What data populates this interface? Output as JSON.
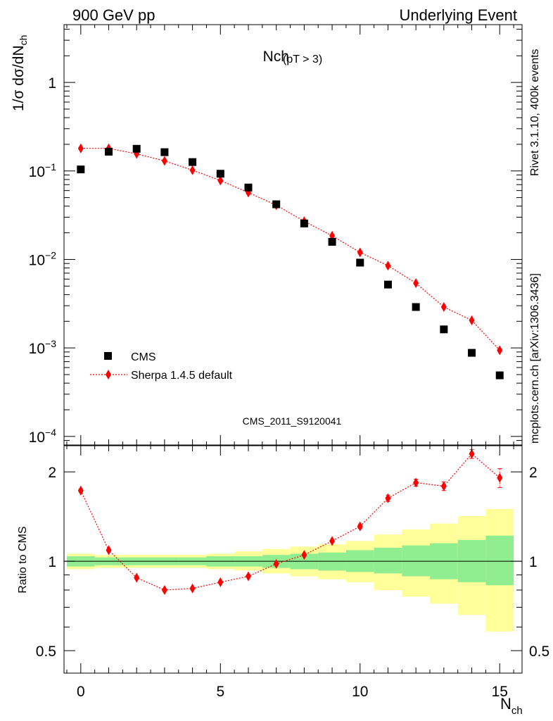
{
  "header": {
    "left_title": "900 GeV pp",
    "right_title": "Underlying Event"
  },
  "side_text": {
    "rivet": "Rivet 3.1.10,  400k events",
    "mcplots": "mcplots.cern.ch [arXiv:1306.3436]"
  },
  "colors": {
    "cms": "#000000",
    "sherpa": "#ff0000",
    "band_inner": "#90ee90",
    "band_outer": "#ffff99"
  },
  "chart_data": [
    {
      "type": "scatter",
      "panel": "main",
      "title_main": "Nch",
      "title_sub": "(pT >  3)",
      "ylabel": "1/σ dσ/dN_ch",
      "yscale": "log",
      "ylim": [
        8e-05,
        4.5
      ],
      "xlim": [
        -0.6,
        15.8
      ],
      "y_ticks": [
        {
          "value": 1,
          "label": "1",
          "sup": ""
        },
        {
          "value": 0.1,
          "label": "10",
          "sup": "−1"
        },
        {
          "value": 0.01,
          "label": "10",
          "sup": "−2"
        },
        {
          "value": 0.001,
          "label": "10",
          "sup": "−3"
        },
        {
          "value": 0.0001,
          "label": "10",
          "sup": "−4"
        }
      ],
      "watermark": "CMS_2011_S9120041",
      "legend_position": "bottom-left",
      "series": [
        {
          "name": "CMS",
          "marker": "square",
          "x": [
            0,
            1,
            2,
            3,
            4,
            5,
            6,
            7,
            8,
            9,
            10,
            11,
            12,
            13,
            14,
            15
          ],
          "y": [
            0.104,
            0.165,
            0.178,
            0.163,
            0.126,
            0.093,
            0.065,
            0.042,
            0.0255,
            0.0158,
            0.0092,
            0.0052,
            0.0029,
            0.00162,
            0.00088,
            0.00049
          ]
        },
        {
          "name": "Sherpa 1.4.5 default",
          "marker": "diamond",
          "line": "dotted",
          "x": [
            0,
            1,
            2,
            3,
            4,
            5,
            6,
            7,
            8,
            9,
            10,
            11,
            12,
            13,
            14,
            15
          ],
          "y": [
            0.18,
            0.18,
            0.156,
            0.13,
            0.102,
            0.078,
            0.057,
            0.041,
            0.027,
            0.0185,
            0.012,
            0.0085,
            0.0054,
            0.0029,
            0.00205,
            0.00094
          ]
        }
      ]
    },
    {
      "type": "line",
      "panel": "ratio",
      "ylabel": "Ratio to CMS",
      "xlabel": "N_ch",
      "yscale": "log",
      "ylim": [
        0.42,
        2.45
      ],
      "xlim": [
        -0.6,
        15.8
      ],
      "x_ticks": [
        0,
        5,
        10,
        15
      ],
      "y_ticks": [
        0.5,
        1,
        2
      ],
      "reference": 1,
      "series": [
        {
          "name": "Sherpa 1.4.5 default / CMS",
          "x": [
            0,
            1,
            2,
            3,
            4,
            5,
            6,
            7,
            8,
            9,
            10,
            11,
            12,
            13,
            14,
            15
          ],
          "y": [
            1.73,
            1.09,
            0.88,
            0.8,
            0.81,
            0.85,
            0.89,
            0.98,
            1.05,
            1.17,
            1.31,
            1.63,
            1.84,
            1.79,
            2.3,
            1.91
          ],
          "err": [
            0.02,
            0.01,
            0.01,
            0.01,
            0.01,
            0.01,
            0.01,
            0.01,
            0.01,
            0.01,
            0.02,
            0.04,
            0.05,
            0.06,
            0.08,
            0.14
          ]
        }
      ],
      "uncertainty_bands": {
        "x": [
          0,
          1,
          2,
          3,
          4,
          5,
          6,
          7,
          8,
          9,
          10,
          11,
          12,
          13,
          14,
          15
        ],
        "inner_lo": [
          0.96,
          0.97,
          0.97,
          0.97,
          0.97,
          0.96,
          0.96,
          0.95,
          0.94,
          0.93,
          0.92,
          0.91,
          0.89,
          0.87,
          0.85,
          0.83
        ],
        "inner_hi": [
          1.04,
          1.03,
          1.03,
          1.03,
          1.03,
          1.04,
          1.04,
          1.05,
          1.06,
          1.07,
          1.09,
          1.11,
          1.13,
          1.15,
          1.18,
          1.22
        ],
        "outer_lo": [
          0.94,
          0.95,
          0.95,
          0.95,
          0.95,
          0.94,
          0.93,
          0.91,
          0.89,
          0.87,
          0.85,
          0.8,
          0.76,
          0.72,
          0.66,
          0.58
        ],
        "outer_hi": [
          1.06,
          1.05,
          1.05,
          1.05,
          1.05,
          1.06,
          1.08,
          1.1,
          1.12,
          1.14,
          1.17,
          1.23,
          1.28,
          1.34,
          1.42,
          1.5
        ]
      }
    }
  ]
}
